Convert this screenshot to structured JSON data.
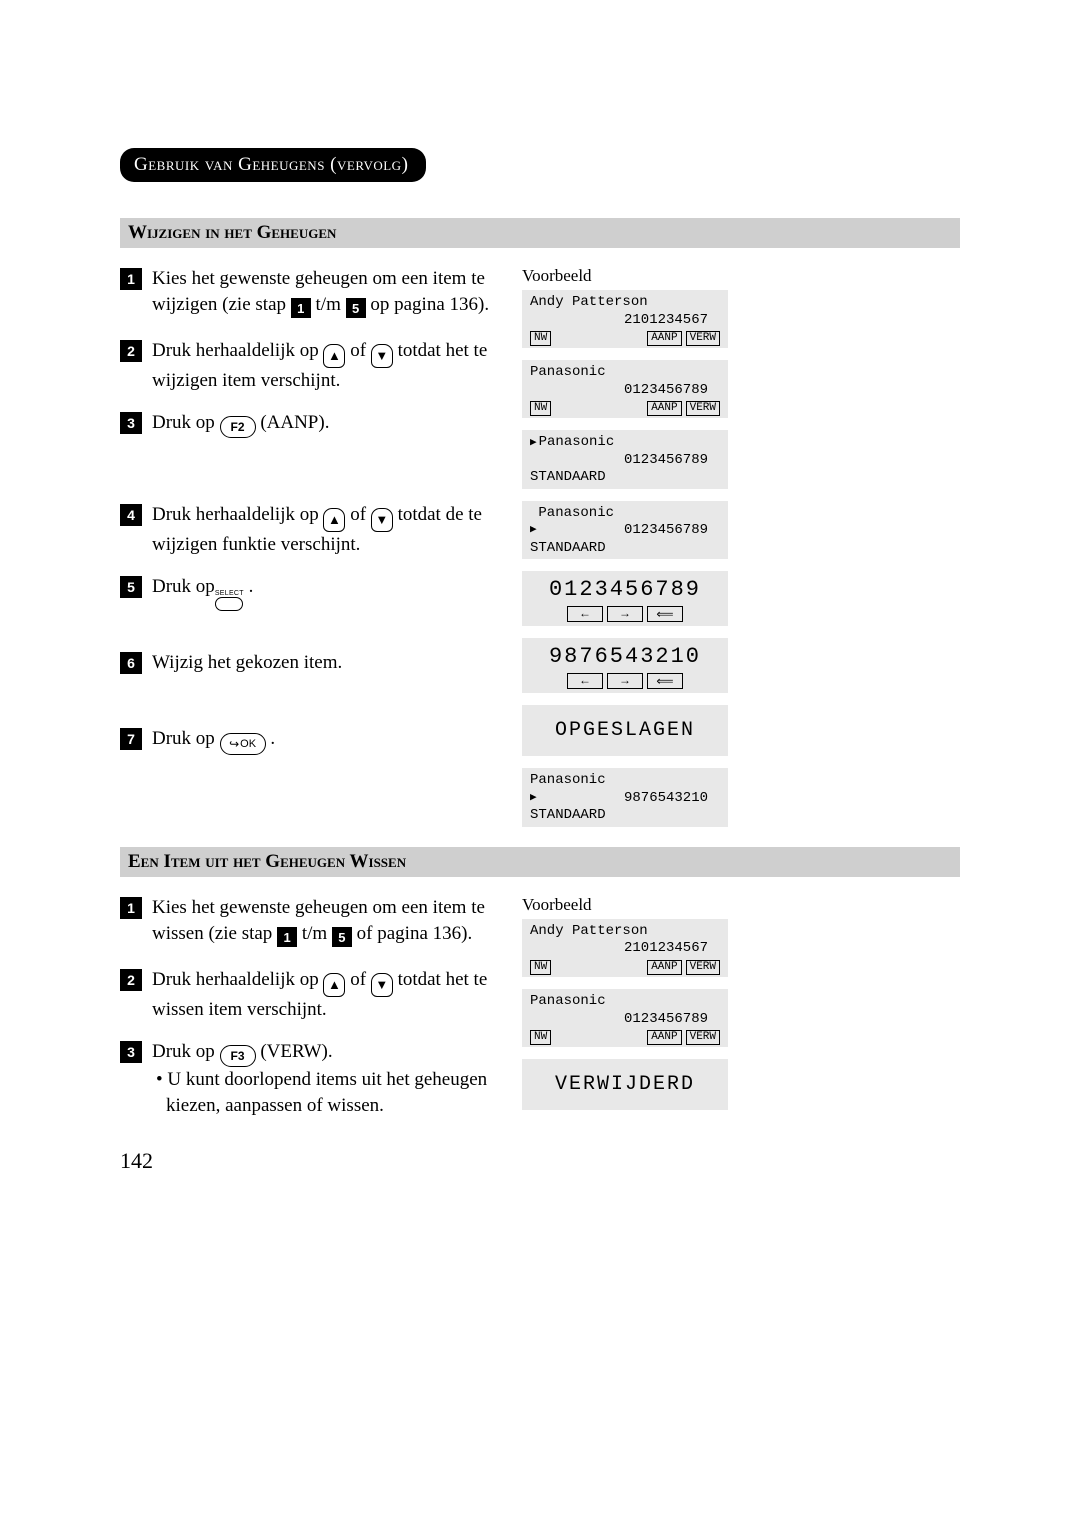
{
  "sectionTitle": "Gebruik van Geheugens (vervolg)",
  "section1": {
    "heading": "Wijzigen in het Geheugen",
    "steps": {
      "s1": {
        "a": "Kies het gewenste geheugen om een item te wijzigen (zie stap ",
        "b": " t/m ",
        "c": " op pagina 136)."
      },
      "s2": {
        "a": "Druk herhaaldelijk op ",
        "b": " of ",
        "c": " totdat het te wijzigen item verschijnt."
      },
      "s3": {
        "a": "Druk op ",
        "b": " (AANP)."
      },
      "s4": {
        "a": "Druk herhaaldelijk op ",
        "b": " of ",
        "c": " totdat de te wijzigen funktie verschijnt."
      },
      "s5": {
        "a": "Druk op",
        "b": " ."
      },
      "s6": "Wijzig het gekozen item.",
      "s7": {
        "a": "Druk op ",
        "b": " ."
      }
    },
    "voorbeeld": "Voorbeeld",
    "displays": {
      "d1": {
        "line1": "Andy Patterson",
        "number": "2101234567",
        "keys": [
          "NW",
          "AANP",
          "VERW"
        ]
      },
      "d2": {
        "line1": "Panasonic",
        "number": "0123456789",
        "keys": [
          "NW",
          "AANP",
          "VERW"
        ]
      },
      "d3": {
        "line1pointer": "▶",
        "line1": "Panasonic",
        "number": "0123456789",
        "line3": "STANDAARD"
      },
      "d4": {
        "line1": " Panasonic",
        "line2pointer": "▶",
        "number": "0123456789",
        "line3": "STANDAARD"
      },
      "d5": {
        "big": "0123456789"
      },
      "d6": {
        "big": "9876543210"
      },
      "d7": "OPGESLAGEN",
      "d8": {
        "line1": "Panasonic",
        "line2pointer": "▶",
        "number": "9876543210",
        "line3": "STANDAARD"
      }
    }
  },
  "section2": {
    "heading": "Een Item uit het Geheugen Wissen",
    "steps": {
      "s1": {
        "a": "Kies het gewenste geheugen om een item te wissen (zie stap ",
        "b": " t/m ",
        "c": " of pagina 136)."
      },
      "s2": {
        "a": "Druk herhaaldelijk op ",
        "b": " of ",
        "c": " totdat het te wissen item verschijnt."
      },
      "s3": {
        "a": "Druk op ",
        "b": " (VERW).",
        "bullet": "• U kunt doorlopend items uit het geheugen kiezen, aanpassen of wissen."
      }
    },
    "voorbeeld": "Voorbeeld",
    "displays": {
      "d1": {
        "line1": "Andy Patterson",
        "number": "2101234567",
        "keys": [
          "NW",
          "AANP",
          "VERW"
        ]
      },
      "d2": {
        "line1": "Panasonic",
        "number": "0123456789",
        "keys": [
          "NW",
          "AANP",
          "VERW"
        ]
      },
      "d3": "VERWIJDERD"
    }
  },
  "labels": {
    "f2": "F2",
    "f3": "F3",
    "select": "SELECT",
    "ok": "OK"
  },
  "pageNumber": "142"
}
